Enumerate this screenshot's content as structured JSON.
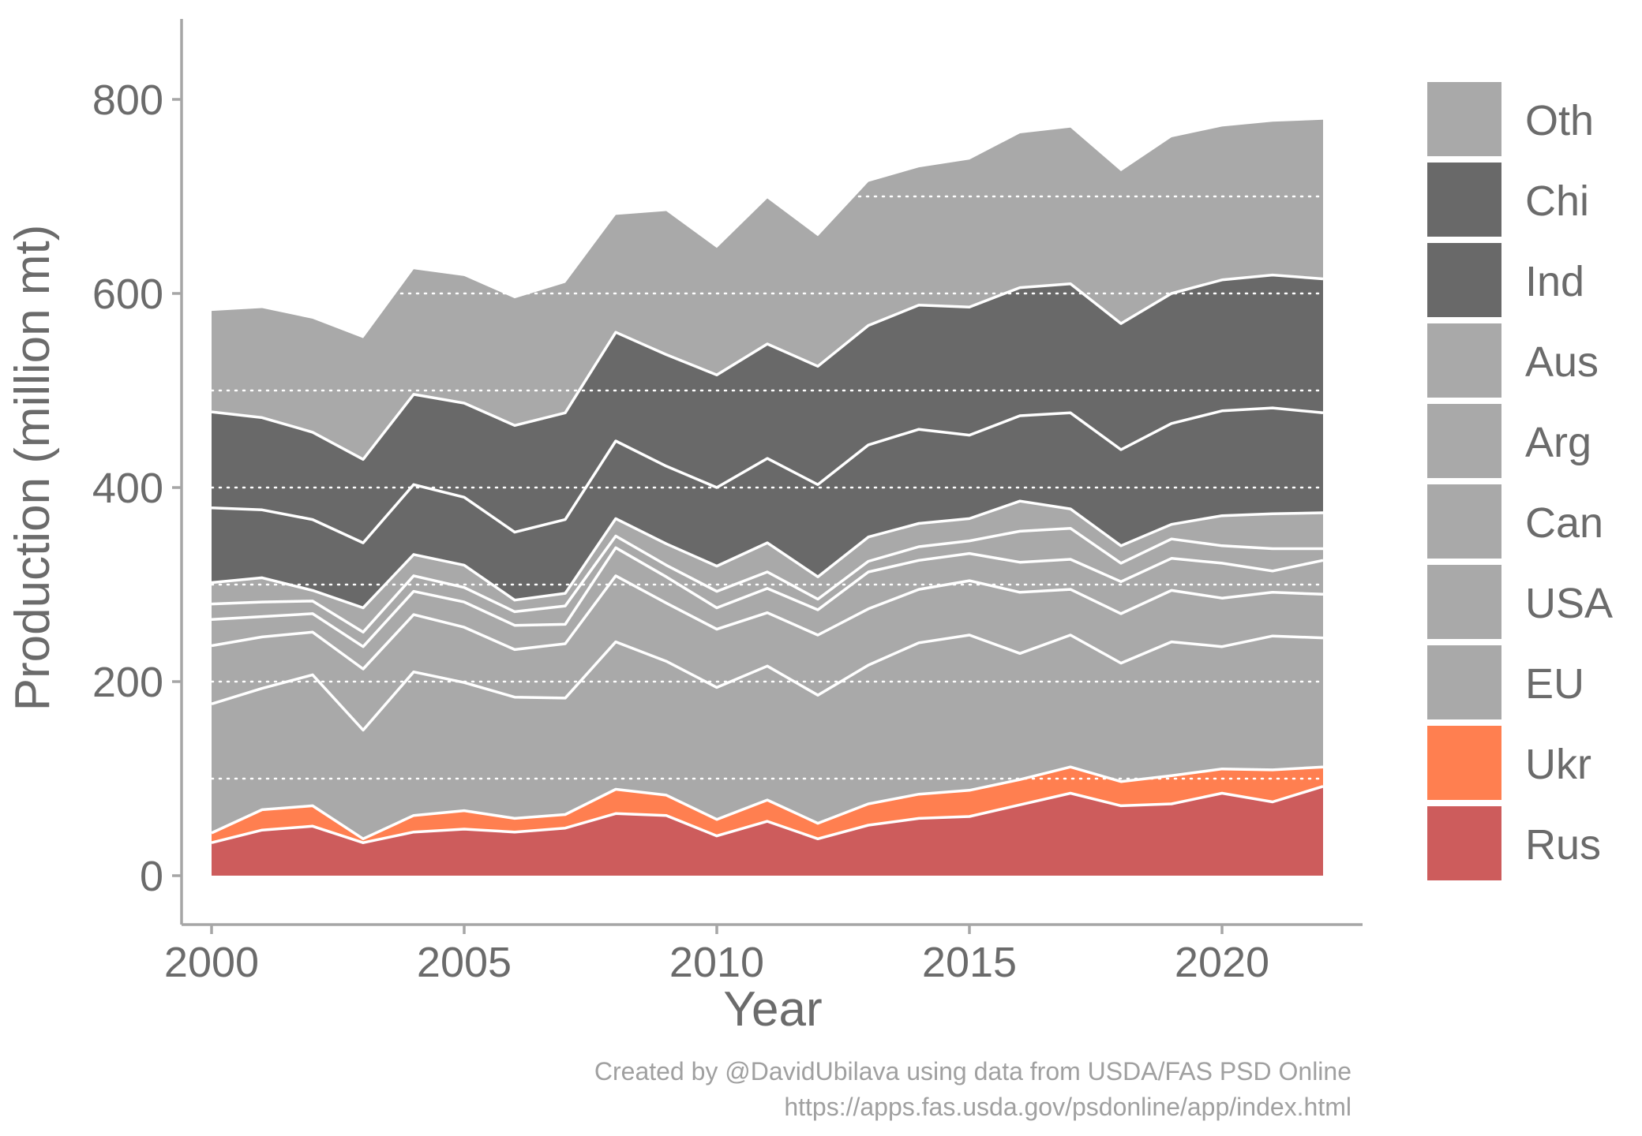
{
  "chart_data": {
    "type": "area",
    "xlabel": "Year",
    "ylabel": "Production (million mt)",
    "xlim": [
      2000,
      2022
    ],
    "ylim": [
      -40,
      880
    ],
    "x_ticks": [
      2000,
      2005,
      2010,
      2015,
      2020
    ],
    "y_ticks": [
      0,
      200,
      400,
      600,
      800
    ],
    "grid": "dotted horizontal lines every 100",
    "legend_position": "right",
    "x": [
      2000,
      2001,
      2002,
      2003,
      2004,
      2005,
      2006,
      2007,
      2008,
      2009,
      2010,
      2011,
      2012,
      2013,
      2014,
      2015,
      2016,
      2017,
      2018,
      2019,
      2020,
      2021,
      2022
    ],
    "series": [
      {
        "name": "Rus",
        "color": "#cd5c5c",
        "values": [
          34,
          47,
          51,
          34,
          45,
          48,
          45,
          49,
          64,
          62,
          41,
          56,
          38,
          52,
          59,
          61,
          73,
          85,
          72,
          74,
          85,
          76,
          92
        ]
      },
      {
        "name": "Ukr",
        "color": "#ff7f50",
        "values": [
          10,
          21,
          21,
          4,
          17,
          19,
          14,
          14,
          25,
          21,
          17,
          22,
          16,
          22,
          25,
          27,
          26,
          27,
          25,
          29,
          25,
          33,
          20
        ]
      },
      {
        "name": "EU",
        "color": "#a9a9a9",
        "values": [
          133,
          125,
          135,
          112,
          148,
          132,
          125,
          120,
          152,
          138,
          136,
          138,
          132,
          143,
          156,
          160,
          130,
          136,
          122,
          138,
          126,
          138,
          133
        ]
      },
      {
        "name": "USA",
        "color": "#a9a9a9",
        "values": [
          60,
          53,
          44,
          63,
          59,
          57,
          49,
          56,
          68,
          60,
          60,
          55,
          62,
          58,
          55,
          56,
          63,
          47,
          51,
          53,
          50,
          45,
          45
        ]
      },
      {
        "name": "Can",
        "color": "#a9a9a9",
        "values": [
          27,
          21,
          19,
          23,
          24,
          26,
          25,
          20,
          29,
          27,
          22,
          25,
          26,
          38,
          30,
          28,
          31,
          31,
          33,
          33,
          36,
          22,
          35
        ]
      },
      {
        "name": "Arg",
        "color": "#a9a9a9",
        "values": [
          16,
          15,
          13,
          15,
          16,
          15,
          14,
          19,
          12,
          12,
          17,
          17,
          11,
          11,
          14,
          13,
          32,
          32,
          19,
          20,
          18,
          23,
          12
        ]
      },
      {
        "name": "Aus",
        "color": "#a9a9a9",
        "values": [
          22,
          25,
          11,
          25,
          22,
          23,
          12,
          13,
          18,
          22,
          26,
          30,
          23,
          25,
          24,
          23,
          31,
          20,
          18,
          15,
          31,
          36,
          37
        ]
      },
      {
        "name": "Ind",
        "color": "#696969",
        "values": [
          77,
          70,
          73,
          67,
          72,
          70,
          70,
          76,
          80,
          80,
          81,
          87,
          95,
          95,
          97,
          86,
          88,
          99,
          99,
          104,
          108,
          109,
          103
        ]
      },
      {
        "name": "Chi",
        "color": "#696969",
        "values": [
          99,
          95,
          90,
          86,
          93,
          97,
          110,
          110,
          112,
          115,
          116,
          118,
          122,
          123,
          128,
          132,
          132,
          133,
          130,
          134,
          135,
          137,
          138
        ]
      },
      {
        "name": "Oth",
        "color": "#a9a9a9",
        "values": [
          104,
          113,
          117,
          125,
          129,
          131,
          131,
          134,
          121,
          148,
          131,
          150,
          134,
          148,
          142,
          152,
          159,
          161,
          157,
          161,
          158,
          158,
          164
        ]
      }
    ],
    "caption_lines": [
      "Created by @DavidUbilava using data from USDA/FAS PSD Online",
      "https://apps.fas.usda.gov/psdonline/app/index.html"
    ]
  }
}
